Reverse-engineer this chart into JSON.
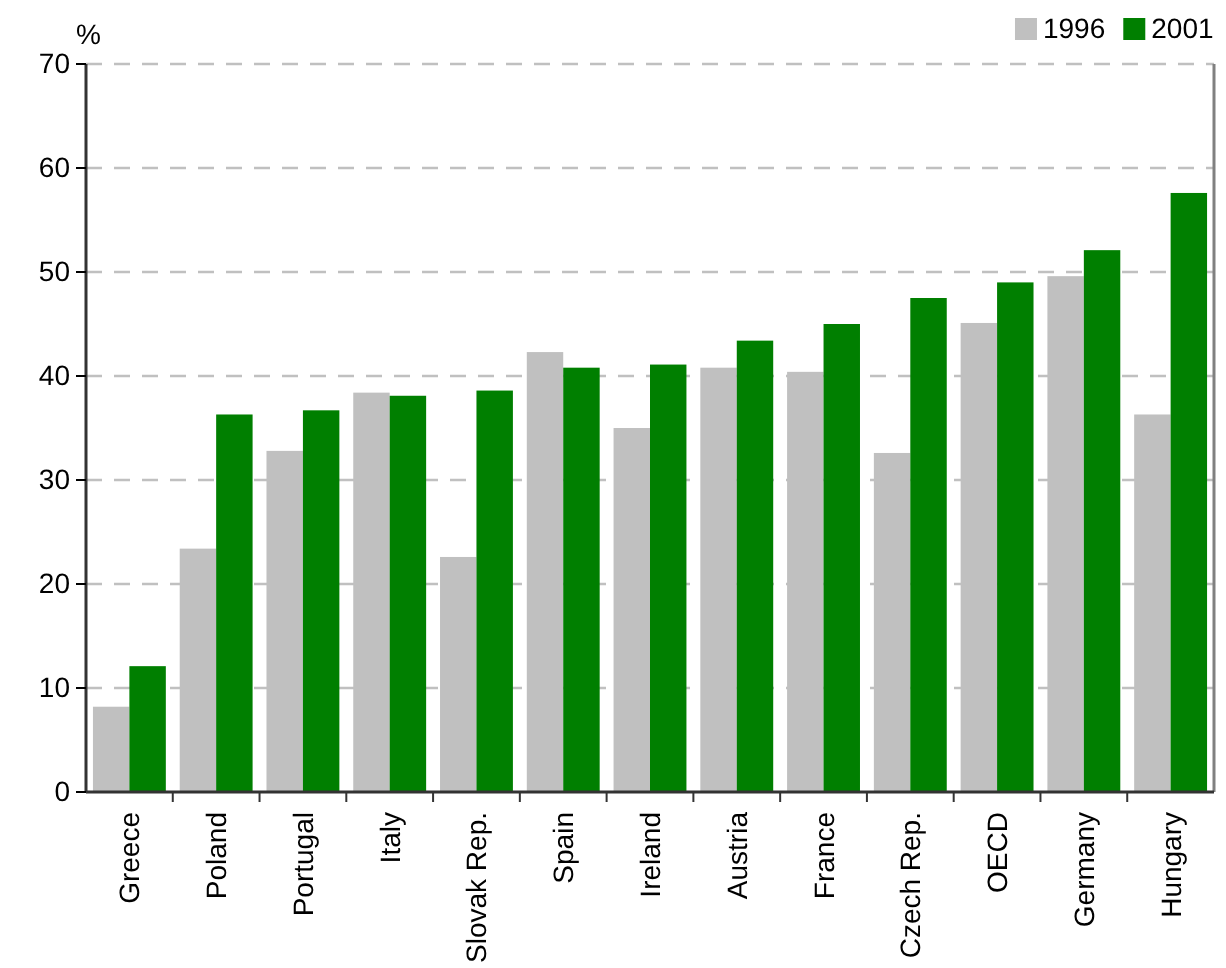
{
  "chart_data": {
    "type": "bar",
    "ylabel": "%",
    "categories": [
      "Greece",
      "Poland",
      "Portugal",
      "Italy",
      "Slovak Rep.",
      "Spain",
      "Ireland",
      "Austria",
      "France",
      "Czech Rep.",
      "OECD",
      "Germany",
      "Hungary"
    ],
    "series": [
      {
        "name": "1996",
        "color": "#c0c0c0",
        "values": [
          8.2,
          23.4,
          32.8,
          38.4,
          22.6,
          42.3,
          35.0,
          40.8,
          40.4,
          32.6,
          45.1,
          49.6,
          36.3
        ]
      },
      {
        "name": "2001",
        "color": "#007f00",
        "values": [
          12.1,
          36.3,
          36.7,
          38.1,
          38.6,
          40.8,
          41.1,
          43.4,
          45.0,
          47.5,
          49.0,
          52.1,
          57.6
        ]
      }
    ],
    "ylim": [
      0,
      70
    ],
    "yticks": [
      0,
      10,
      20,
      30,
      40,
      50,
      60,
      70
    ],
    "grid": "y",
    "legend": "top right"
  }
}
